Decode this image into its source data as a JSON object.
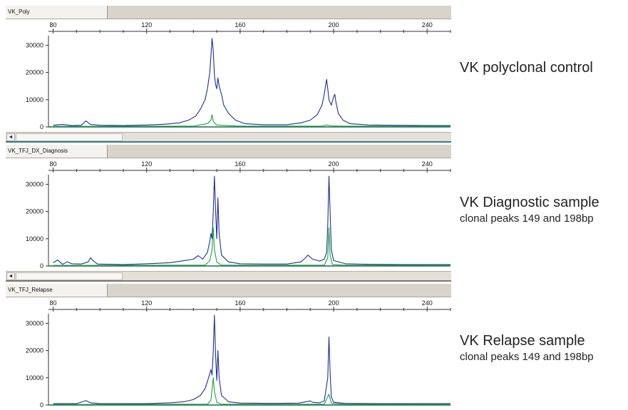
{
  "panels": [
    {
      "tab": "VK_Poly",
      "title": "VK polyclonal control",
      "subtitle": ""
    },
    {
      "tab": "VK_TFJ_DX_Diagnosis",
      "title": "VK Diagnostic sample",
      "subtitle": "clonal peaks 149 and 198bp"
    },
    {
      "tab": "VK_TFJ_Relapse",
      "title": "VK Relapse sample",
      "subtitle": "clonal peaks 149 and 198bp"
    }
  ],
  "scroll_arrow": "◄",
  "colors": {
    "blue": "#1c2f9c",
    "green": "#19a53a",
    "teal": "#2f7e8a"
  },
  "chart_data": [
    {
      "type": "line",
      "x_ticks": [
        80,
        120,
        160,
        200,
        240
      ],
      "y_ticks": [
        0,
        10000,
        20000,
        30000
      ],
      "xlim": [
        78,
        250
      ],
      "ylim": [
        0,
        33000
      ],
      "series": [
        {
          "color": "blue",
          "points": [
            [
              80,
              600
            ],
            [
              84,
              900
            ],
            [
              88,
              500
            ],
            [
              92,
              600
            ],
            [
              94,
              2200
            ],
            [
              96,
              900
            ],
            [
              100,
              600
            ],
            [
              110,
              500
            ],
            [
              120,
              700
            ],
            [
              128,
              1000
            ],
            [
              134,
              1500
            ],
            [
              138,
              2500
            ],
            [
              141,
              4000
            ],
            [
              143,
              6500
            ],
            [
              145,
              10000
            ],
            [
              146,
              14000
            ],
            [
              147,
              20000
            ],
            [
              147.5,
              26000
            ],
            [
              148,
              32500
            ],
            [
              148.5,
              28000
            ],
            [
              149,
              19000
            ],
            [
              149.5,
              15500
            ],
            [
              150,
              14000
            ],
            [
              150.5,
              18000
            ],
            [
              151,
              15000
            ],
            [
              152,
              12000
            ],
            [
              153,
              8000
            ],
            [
              155,
              5000
            ],
            [
              158,
              2500
            ],
            [
              162,
              1200
            ],
            [
              170,
              800
            ],
            [
              180,
              800
            ],
            [
              186,
              1500
            ],
            [
              190,
              2500
            ],
            [
              193,
              4500
            ],
            [
              195,
              8000
            ],
            [
              196,
              12000
            ],
            [
              196.5,
              15000
            ],
            [
              197,
              17500
            ],
            [
              197.5,
              14000
            ],
            [
              198,
              10000
            ],
            [
              199,
              8000
            ],
            [
              200,
              11000
            ],
            [
              200.5,
              12000
            ],
            [
              201,
              9000
            ],
            [
              202,
              5000
            ],
            [
              204,
              2500
            ],
            [
              207,
              1200
            ],
            [
              215,
              700
            ],
            [
              225,
              600
            ],
            [
              240,
              500
            ],
            [
              250,
              500
            ]
          ]
        },
        {
          "color": "green",
          "points": [
            [
              80,
              200
            ],
            [
              140,
              300
            ],
            [
              146,
              1200
            ],
            [
              147.5,
              2500
            ],
            [
              148,
              4500
            ],
            [
              148.5,
              2000
            ],
            [
              150,
              700
            ],
            [
              160,
              300
            ],
            [
              195,
              300
            ],
            [
              197,
              700
            ],
            [
              199,
              400
            ],
            [
              205,
              300
            ],
            [
              250,
              200
            ]
          ]
        }
      ]
    },
    {
      "type": "line",
      "x_ticks": [
        80,
        120,
        160,
        200,
        240
      ],
      "y_ticks": [
        0,
        10000,
        20000,
        30000
      ],
      "xlim": [
        78,
        250
      ],
      "ylim": [
        0,
        33000
      ],
      "series": [
        {
          "color": "blue",
          "points": [
            [
              80,
              1200
            ],
            [
              82,
              2200
            ],
            [
              84,
              600
            ],
            [
              86,
              1500
            ],
            [
              88,
              800
            ],
            [
              92,
              700
            ],
            [
              95,
              1500
            ],
            [
              96,
              3000
            ],
            [
              97,
              2000
            ],
            [
              99,
              700
            ],
            [
              105,
              600
            ],
            [
              110,
              500
            ],
            [
              120,
              800
            ],
            [
              130,
              1200
            ],
            [
              135,
              1800
            ],
            [
              140,
              2500
            ],
            [
              142,
              3800
            ],
            [
              144,
              2500
            ],
            [
              146,
              5000
            ],
            [
              147,
              9000
            ],
            [
              147.5,
              12000
            ],
            [
              148,
              10000
            ],
            [
              148.5,
              20000
            ],
            [
              149,
              35000
            ],
            [
              149.5,
              20000
            ],
            [
              150,
              10000
            ],
            [
              150.5,
              25000
            ],
            [
              151,
              12000
            ],
            [
              152,
              4000
            ],
            [
              155,
              1500
            ],
            [
              160,
              800
            ],
            [
              170,
              700
            ],
            [
              180,
              700
            ],
            [
              186,
              1500
            ],
            [
              188,
              3000
            ],
            [
              189,
              4000
            ],
            [
              191,
              2500
            ],
            [
              194,
              1800
            ],
            [
              196,
              2500
            ],
            [
              197,
              5000
            ],
            [
              197.5,
              15000
            ],
            [
              198,
              35000
            ],
            [
              198.5,
              20000
            ],
            [
              199,
              6000
            ],
            [
              200,
              2000
            ],
            [
              205,
              800
            ],
            [
              215,
              600
            ],
            [
              230,
              500
            ],
            [
              250,
              500
            ]
          ]
        },
        {
          "color": "green",
          "points": [
            [
              80,
              200
            ],
            [
              145,
              300
            ],
            [
              147,
              2000
            ],
            [
              148,
              6000
            ],
            [
              148.5,
              14000
            ],
            [
              149,
              6000
            ],
            [
              150,
              1500
            ],
            [
              152,
              300
            ],
            [
              196,
              300
            ],
            [
              197.5,
              3000
            ],
            [
              198,
              14000
            ],
            [
              198.5,
              4000
            ],
            [
              199.5,
              500
            ],
            [
              205,
              300
            ],
            [
              250,
              200
            ]
          ]
        }
      ]
    },
    {
      "type": "line",
      "x_ticks": [
        80,
        120,
        160,
        200,
        240
      ],
      "y_ticks": [
        0,
        10000,
        20000,
        30000
      ],
      "xlim": [
        78,
        250
      ],
      "ylim": [
        0,
        33000
      ],
      "series": [
        {
          "color": "blue",
          "points": [
            [
              80,
              500
            ],
            [
              90,
              500
            ],
            [
              94,
              1600
            ],
            [
              96,
              800
            ],
            [
              100,
              500
            ],
            [
              110,
              500
            ],
            [
              120,
              500
            ],
            [
              130,
              800
            ],
            [
              136,
              1200
            ],
            [
              140,
              2000
            ],
            [
              143,
              3500
            ],
            [
              145,
              6000
            ],
            [
              146.5,
              10000
            ],
            [
              147.5,
              13000
            ],
            [
              148,
              11000
            ],
            [
              148.5,
              20000
            ],
            [
              149,
              35000
            ],
            [
              149.5,
              18000
            ],
            [
              150,
              9000
            ],
            [
              150.5,
              20000
            ],
            [
              151,
              10000
            ],
            [
              152,
              3500
            ],
            [
              155,
              1200
            ],
            [
              160,
              700
            ],
            [
              175,
              600
            ],
            [
              185,
              700
            ],
            [
              190,
              1500
            ],
            [
              191,
              1000
            ],
            [
              194,
              800
            ],
            [
              196,
              1500
            ],
            [
              197.5,
              10000
            ],
            [
              198,
              25000
            ],
            [
              198.5,
              12000
            ],
            [
              199,
              3000
            ],
            [
              200,
              1000
            ],
            [
              205,
              600
            ],
            [
              220,
              500
            ],
            [
              250,
              500
            ]
          ]
        },
        {
          "color": "green",
          "points": [
            [
              80,
              200
            ],
            [
              146,
              300
            ],
            [
              147.5,
              1800
            ],
            [
              148.5,
              10000
            ],
            [
              149,
              5000
            ],
            [
              150,
              1000
            ],
            [
              152,
              300
            ],
            [
              196,
              300
            ],
            [
              198,
              4000
            ],
            [
              199,
              600
            ],
            [
              205,
              300
            ],
            [
              250,
              200
            ]
          ]
        }
      ]
    }
  ]
}
